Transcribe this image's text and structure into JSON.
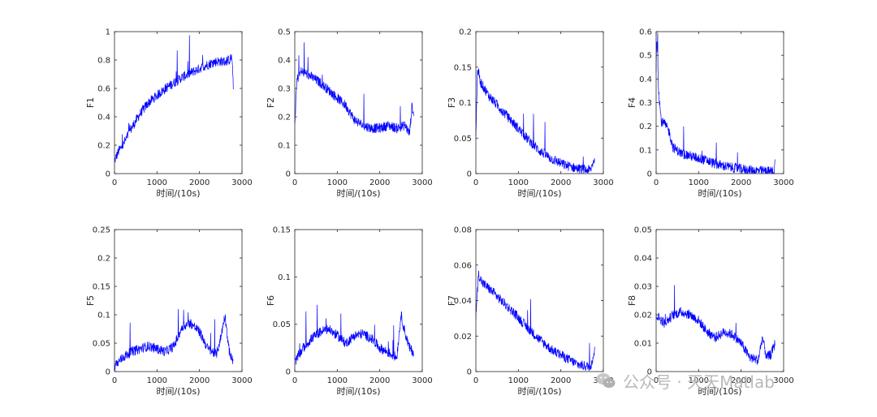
{
  "chart_data": [
    {
      "type": "line",
      "ylabel": "F1",
      "xlabel": "时间/(10s)",
      "xlim": [
        0,
        3000
      ],
      "ylim": [
        0,
        1
      ],
      "xticks": [
        "0",
        "1000",
        "2000",
        "3000"
      ],
      "yticks": [
        "0",
        "0.2",
        "0.4",
        "0.6",
        "0.8",
        "1"
      ],
      "series": [
        {
          "color": "#0000ff",
          "x": [
            0,
            100,
            200,
            400,
            600,
            800,
            1000,
            1200,
            1400,
            1600,
            1800,
            2000,
            2200,
            2400,
            2600,
            2700,
            2760,
            2800
          ],
          "y": [
            0.09,
            0.16,
            0.2,
            0.32,
            0.42,
            0.5,
            0.55,
            0.6,
            0.64,
            0.68,
            0.71,
            0.74,
            0.77,
            0.79,
            0.79,
            0.8,
            0.82,
            0.6
          ]
        }
      ]
    },
    {
      "type": "line",
      "ylabel": "F2",
      "xlabel": "时间/(10s)",
      "xlim": [
        0,
        3000
      ],
      "ylim": [
        0,
        0.5
      ],
      "xticks": [
        "0",
        "1000",
        "2000",
        "3000"
      ],
      "yticks": [
        "0",
        "0.1",
        "0.2",
        "0.3",
        "0.4",
        "0.5"
      ],
      "series": [
        {
          "color": "#0000ff",
          "x": [
            0,
            50,
            150,
            300,
            600,
            900,
            1200,
            1400,
            1600,
            1800,
            2000,
            2200,
            2400,
            2600,
            2700,
            2760,
            2800
          ],
          "y": [
            0.17,
            0.33,
            0.36,
            0.35,
            0.32,
            0.28,
            0.24,
            0.19,
            0.17,
            0.16,
            0.16,
            0.17,
            0.16,
            0.17,
            0.14,
            0.24,
            0.2
          ]
        }
      ]
    },
    {
      "type": "line",
      "ylabel": "F3",
      "xlabel": "时间/(10s)",
      "xlim": [
        0,
        3000
      ],
      "ylim": [
        0,
        0.2
      ],
      "xticks": [
        "0",
        "1000",
        "2000",
        "3000"
      ],
      "yticks": [
        "0",
        "0.05",
        "0.1",
        "0.15",
        "0.2"
      ],
      "series": [
        {
          "color": "#0000ff",
          "x": [
            0,
            40,
            100,
            300,
            600,
            900,
            1200,
            1500,
            1800,
            2100,
            2400,
            2600,
            2700,
            2780,
            2800
          ],
          "y": [
            0.05,
            0.15,
            0.13,
            0.11,
            0.09,
            0.07,
            0.05,
            0.032,
            0.02,
            0.012,
            0.007,
            0.005,
            0.005,
            0.02,
            0.015
          ]
        }
      ]
    },
    {
      "type": "line",
      "ylabel": "F4",
      "xlabel": "时间/(10s)",
      "xlim": [
        0,
        3000
      ],
      "ylim": [
        0,
        0.6
      ],
      "xticks": [
        "0",
        "1000",
        "2000",
        "3000"
      ],
      "yticks": [
        "0",
        "0.1",
        "0.2",
        "0.3",
        "0.4",
        "0.5",
        "0.6"
      ],
      "series": [
        {
          "color": "#0000ff",
          "x": [
            0,
            20,
            60,
            120,
            200,
            300,
            400,
            600,
            900,
            1200,
            1400,
            1800,
            2200,
            2600,
            2780,
            2800
          ],
          "y": [
            0.45,
            0.58,
            0.35,
            0.22,
            0.21,
            0.18,
            0.11,
            0.085,
            0.07,
            0.055,
            0.04,
            0.025,
            0.015,
            0.01,
            0.01,
            0.06
          ]
        }
      ]
    },
    {
      "type": "line",
      "ylabel": "F5",
      "xlabel": "时间/(10s)",
      "xlim": [
        0,
        3000
      ],
      "ylim": [
        0,
        0.25
      ],
      "xticks": [
        "0",
        "1000",
        "2000",
        "3000"
      ],
      "yticks": [
        "0",
        "0.05",
        "0.1",
        "0.15",
        "0.2",
        "0.25"
      ],
      "series": [
        {
          "color": "#0000ff",
          "x": [
            0,
            200,
            400,
            600,
            800,
            1000,
            1200,
            1400,
            1600,
            1800,
            2000,
            2200,
            2400,
            2500,
            2600,
            2700,
            2800
          ],
          "y": [
            0.01,
            0.025,
            0.035,
            0.04,
            0.045,
            0.04,
            0.035,
            0.045,
            0.08,
            0.085,
            0.07,
            0.04,
            0.03,
            0.06,
            0.1,
            0.035,
            0.015
          ]
        }
      ]
    },
    {
      "type": "line",
      "ylabel": "F6",
      "xlabel": "时间/(10s)",
      "xlim": [
        0,
        3000
      ],
      "ylim": [
        0,
        0.15
      ],
      "xticks": [
        "0",
        "1000",
        "2000",
        "3000"
      ],
      "yticks": [
        "0",
        "0.05",
        "0.1",
        "0.15"
      ],
      "series": [
        {
          "color": "#0000ff",
          "x": [
            0,
            200,
            400,
            600,
            800,
            1000,
            1200,
            1400,
            1600,
            1800,
            2000,
            2200,
            2400,
            2500,
            2600,
            2700,
            2800
          ],
          "y": [
            0.01,
            0.025,
            0.035,
            0.042,
            0.045,
            0.038,
            0.03,
            0.038,
            0.04,
            0.035,
            0.025,
            0.02,
            0.015,
            0.06,
            0.04,
            0.025,
            0.02
          ]
        }
      ]
    },
    {
      "type": "line",
      "ylabel": "F7",
      "xlabel": "时间/(10s)",
      "xlim": [
        0,
        3000
      ],
      "ylim": [
        0,
        0.08
      ],
      "xticks": [
        "0",
        "1000",
        "2000",
        "3000"
      ],
      "yticks": [
        "0",
        "0.02",
        "0.04",
        "0.06",
        "0.08"
      ],
      "series": [
        {
          "color": "#0000ff",
          "x": [
            0,
            60,
            150,
            300,
            600,
            900,
            1200,
            1500,
            1800,
            2100,
            2400,
            2600,
            2700,
            2780,
            2800
          ],
          "y": [
            0.03,
            0.055,
            0.05,
            0.047,
            0.04,
            0.033,
            0.025,
            0.018,
            0.012,
            0.008,
            0.004,
            0.003,
            0.003,
            0.01,
            0.012
          ]
        }
      ]
    },
    {
      "type": "line",
      "ylabel": "F8",
      "xlabel": "时间/(10s)",
      "xlim": [
        0,
        3000
      ],
      "ylim": [
        0,
        0.05
      ],
      "xticks": [
        "0",
        "1000",
        "2000",
        "3000"
      ],
      "yticks": [
        "0",
        "0.01",
        "0.02",
        "0.03",
        "0.04",
        "0.05"
      ],
      "series": [
        {
          "color": "#0000ff",
          "x": [
            0,
            200,
            400,
            600,
            800,
            1000,
            1200,
            1400,
            1600,
            1800,
            2000,
            2200,
            2400,
            2500,
            2600,
            2700,
            2800
          ],
          "y": [
            0.02,
            0.017,
            0.02,
            0.021,
            0.02,
            0.018,
            0.014,
            0.012,
            0.014,
            0.013,
            0.01,
            0.005,
            0.004,
            0.012,
            0.005,
            0.006,
            0.01
          ]
        }
      ]
    }
  ],
  "watermark": {
    "text": "公众号 · 天天Matlab",
    "icon": "wechat-icon"
  }
}
